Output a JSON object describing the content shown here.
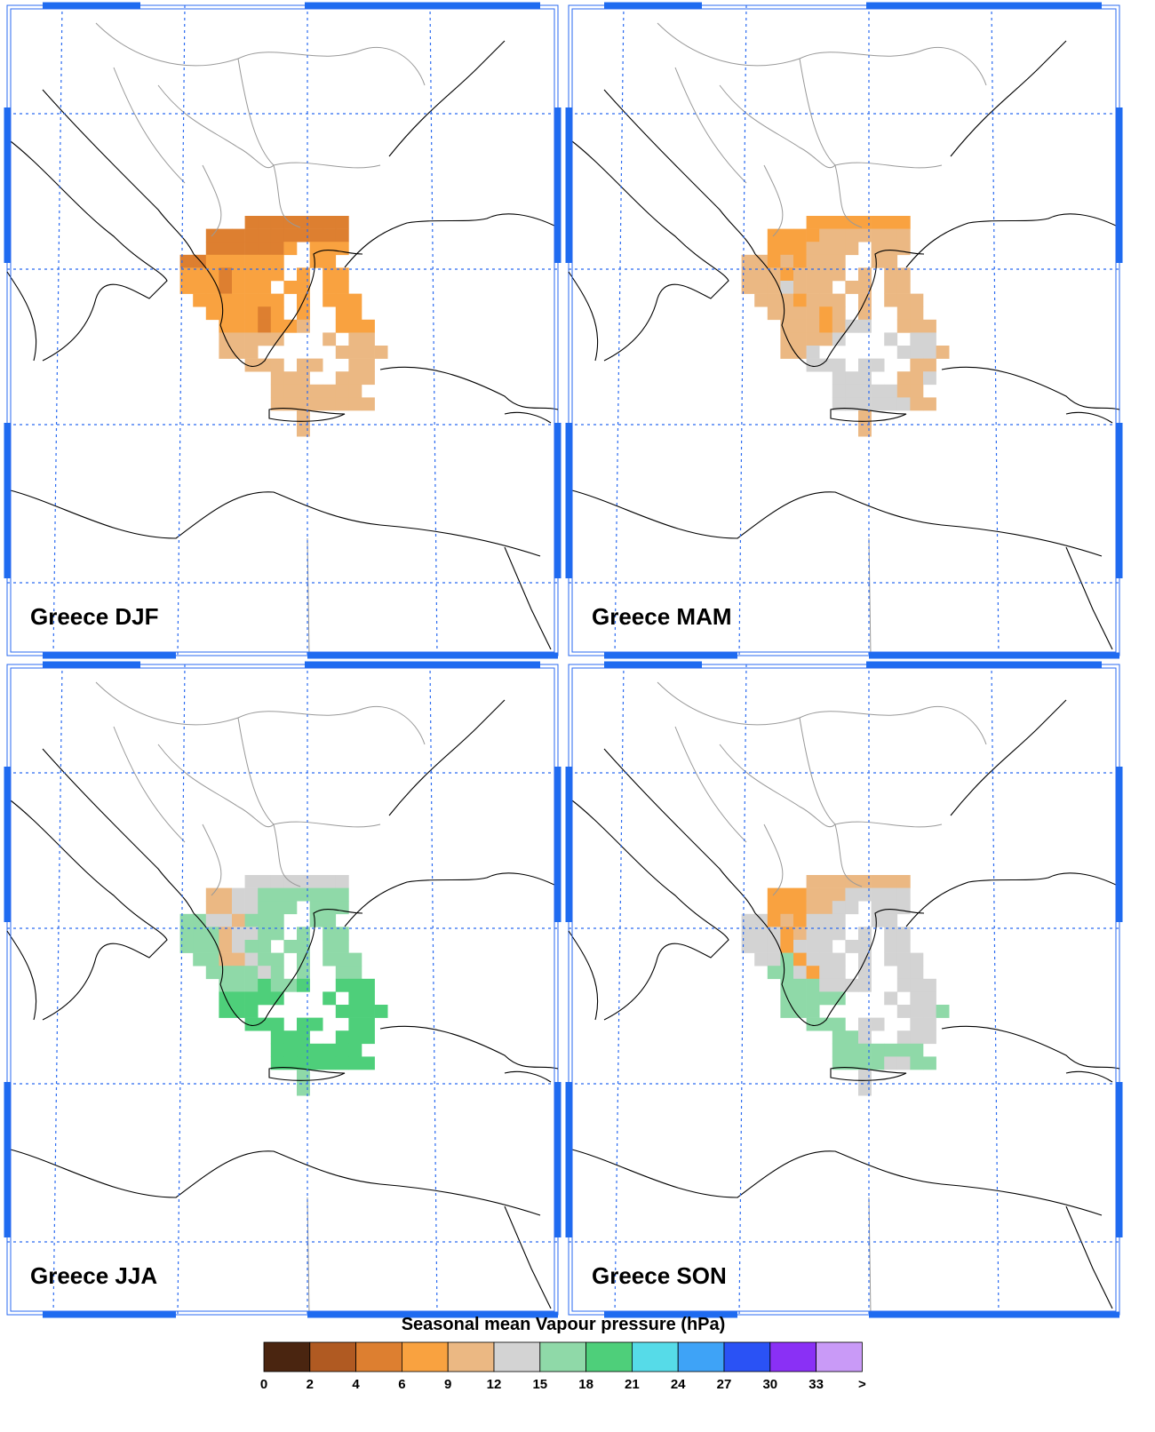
{
  "panels": [
    {
      "title": "Greece DJF",
      "cells": [
        "......22222222....",
        "...22222222222....",
        "...2222223.333....",
        ".22333333..33.....",
        ".33323333.3.33....",
        ".3332333.33.33....",
        "..3333333.3.333...",
        "...333323.3..33...",
        "....3332334..333..",
        "....44444...4.44..",
        "....444......4444.",
        "......444.44..44..",
        "........444..444..",
        "........4444444...",
        "........44444444..",
        "..........4.......",
        "..........4......."
      ]
    },
    {
      "title": "Greece MAM",
      "cells": [
        "......33333333....",
        "...33334444444....",
        "...3334444.444....",
        ".44343444..44.....",
        ".44434444.4.44....",
        ".4445444.44.44....",
        "..4443444.4.444...",
        "...444434.4..44...",
        "....4443455..444..",
        "....44445...5.55..",
        "....445......5554.",
        "......555.55..44..",
        "........555..445..",
        "........5555544...",
        "........55555544..",
        "..........4.......",
        "..........4......."
      ]
    },
    {
      "title": "Greece JJA",
      "cells": [
        "......55555555....",
        "...44556666666....",
        "...4455666.666....",
        ".66554666..66.....",
        ".66645566.6.66....",
        ".6664566.66.66....",
        "..6644566.6.666...",
        "...666656.6..66...",
        "....6667667..777..",
        "....77777...7.77..",
        "....777......7777.",
        "......777.77..77..",
        "........777..777..",
        "........7777777...",
        "........77777777..",
        "..........6.......",
        "..........6......."
      ]
    },
    {
      "title": "Greece SON",
      "cells": [
        "......44444444....",
        "...33344455555....",
        "...3334455.555....",
        ".55343555..55.....",
        ".55534555.5.55....",
        ".5553555.55.55....",
        "..5563555.5.555...",
        "...665355.5..55...",
        "....6665555..555..",
        "....66666...5.55..",
        "....666......5556.",
        "......666.55..55..",
        "........665..555..",
        "........6666666...",
        "........66665566..",
        "..........5.......",
        "..........5......."
      ]
    }
  ],
  "colorbar": {
    "title": "Seasonal mean Vapour pressure (hPa)",
    "labels": [
      0,
      2,
      4,
      6,
      9,
      12,
      15,
      18,
      21,
      24,
      27,
      30,
      33,
      ">"
    ],
    "colors": [
      "#4a2510",
      "#b05a22",
      "#dd7f30",
      "#f9a240",
      "#ebb883",
      "#d3d3d3",
      "#8fd9a8",
      "#4ecf7a",
      "#56dbe8",
      "#3ea3f7",
      "#2a52f5",
      "#8a30f5",
      "#c99af7"
    ]
  }
}
